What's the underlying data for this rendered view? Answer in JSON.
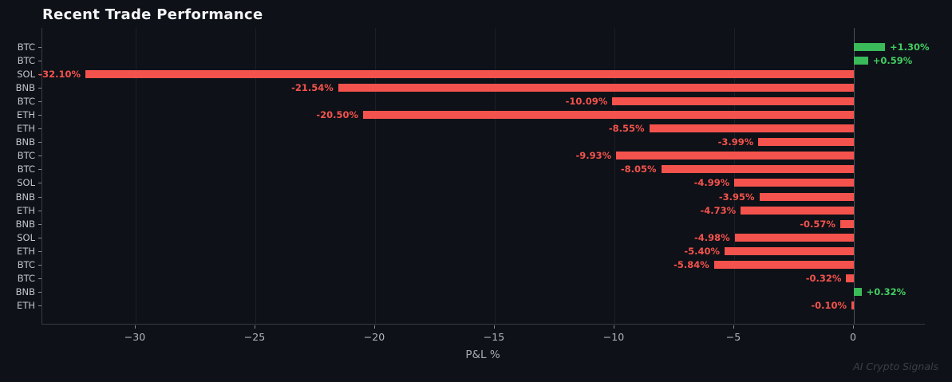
{
  "figure": {
    "title": "Recent Trade Performance",
    "xlabel": "P&L %",
    "watermark": "AI Crypto Signals"
  },
  "chart_data": {
    "type": "bar",
    "orientation": "horizontal",
    "title": "Recent Trade Performance",
    "xlabel": "P&L %",
    "ylabel": "",
    "legend": "none",
    "grid": "vertical-only",
    "xlim": [
      -33.9,
      3.0
    ],
    "xticks": [
      -30,
      -25,
      -20,
      -15,
      -10,
      -5,
      0
    ],
    "categories": [
      "BTC",
      "BTC",
      "SOL",
      "BNB",
      "BTC",
      "ETH",
      "ETH",
      "BNB",
      "BTC",
      "BTC",
      "SOL",
      "BNB",
      "ETH",
      "BNB",
      "SOL",
      "ETH",
      "BTC",
      "BTC",
      "BNB",
      "ETH"
    ],
    "values": [
      1.3,
      0.59,
      -32.1,
      -21.54,
      -10.09,
      -20.5,
      -8.55,
      -3.99,
      -9.93,
      -8.05,
      -4.99,
      -3.95,
      -4.73,
      -0.57,
      -4.98,
      -5.4,
      -5.84,
      -0.32,
      0.32,
      -0.1
    ],
    "bar_labels": [
      "+1.30%",
      "+0.59%",
      "-32.10%",
      "-21.54%",
      "-10.09%",
      "-20.50%",
      "-8.55%",
      "-3.99%",
      "-9.93%",
      "-8.05%",
      "-4.99%",
      "-3.95%",
      "-4.73%",
      "-0.57%",
      "-4.98%",
      "-5.40%",
      "-5.84%",
      "-0.32%",
      "+0.32%",
      "-0.10%"
    ],
    "colors": {
      "background": "#0e1117",
      "positive_bar": "#3aba59",
      "negative_bar": "#f4534d",
      "positive_text": "#42ce63",
      "negative_text": "#f4534d",
      "gridline": "#1a1f28",
      "zero_line": "#4a515c",
      "title_text": "#f3f4f6",
      "tick_text": "#b4b8bf"
    }
  }
}
